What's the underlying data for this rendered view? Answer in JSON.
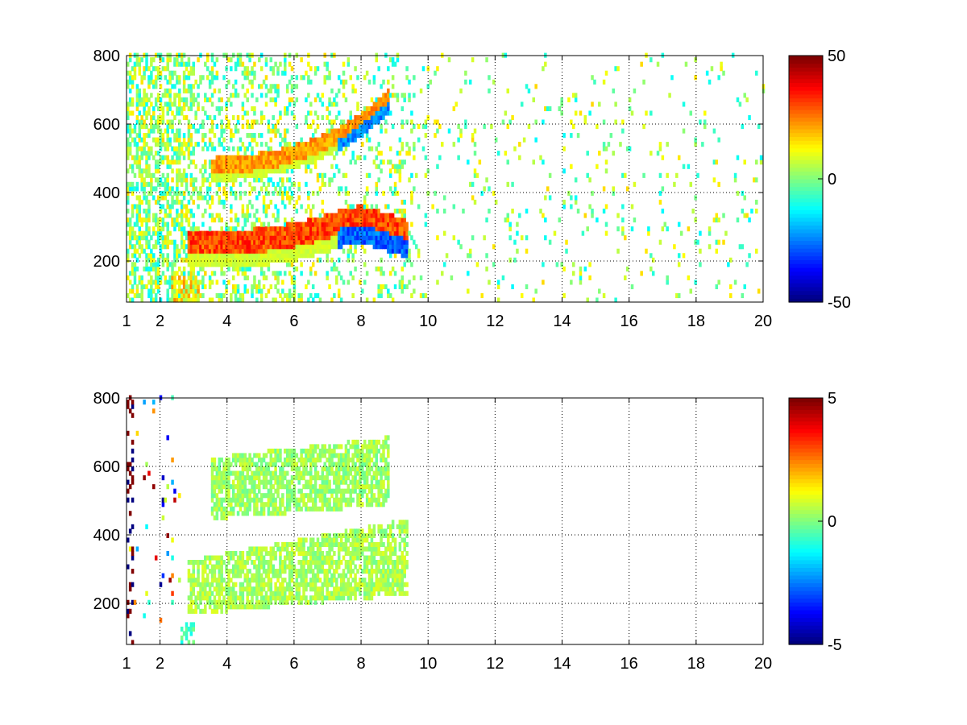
{
  "chart_data": [
    {
      "type": "heatmap",
      "title": "",
      "xlabel": "",
      "ylabel": "",
      "xlim": [
        1,
        20
      ],
      "ylim": [
        80,
        800
      ],
      "xticks": [
        1,
        2,
        4,
        6,
        8,
        10,
        12,
        14,
        16,
        18,
        20
      ],
      "yticks": [
        200,
        400,
        600,
        800
      ],
      "grid": true,
      "colormap": "jet",
      "clim": [
        -50,
        50
      ],
      "colorbar_ticks": [
        -50,
        0,
        50
      ],
      "features": [
        {
          "name": "lower ridge",
          "points": [
            [
              2.8,
              230
            ],
            [
              4,
              228
            ],
            [
              5,
              235
            ],
            [
              6,
              250
            ],
            [
              7,
              275
            ],
            [
              7.5,
              295
            ],
            [
              8,
              300
            ],
            [
              8.5,
              285
            ],
            [
              9,
              270
            ],
            [
              9.4,
              255
            ]
          ],
          "value_above": 38,
          "value_below": -35
        },
        {
          "name": "upper ridge",
          "points": [
            [
              3.5,
              460
            ],
            [
              4.5,
              468
            ],
            [
              5.5,
              485
            ],
            [
              6.5,
              515
            ],
            [
              7.5,
              560
            ],
            [
              8.2,
              610
            ],
            [
              8.8,
              660
            ]
          ],
          "value_above": 28,
          "value_below": -30
        }
      ]
    },
    {
      "type": "heatmap",
      "title": "",
      "xlabel": "",
      "ylabel": "",
      "xlim": [
        1,
        20
      ],
      "ylim": [
        80,
        800
      ],
      "xticks": [
        1,
        2,
        4,
        6,
        8,
        10,
        12,
        14,
        16,
        18,
        20
      ],
      "yticks": [
        200,
        400,
        600,
        800
      ],
      "grid": true,
      "colormap": "jet",
      "clim": [
        -5,
        5
      ],
      "colorbar_ticks": [
        -5,
        0,
        5
      ],
      "features": [
        {
          "name": "lower band",
          "x_range": [
            2.8,
            9.4
          ],
          "y_range": [
            160,
            320
          ],
          "value": 0.4
        },
        {
          "name": "upper band",
          "x_range": [
            3.5,
            8.8
          ],
          "y_range": [
            440,
            620
          ],
          "value": 0.3
        }
      ]
    }
  ]
}
